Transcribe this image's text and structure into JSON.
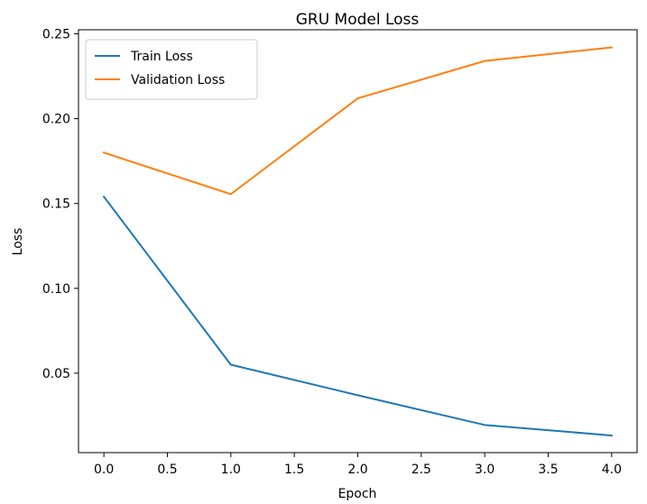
{
  "chart_data": {
    "type": "line",
    "title": "GRU Model Loss",
    "xlabel": "Epoch",
    "ylabel": "Loss",
    "x": [
      0,
      1,
      2,
      3,
      4
    ],
    "series": [
      {
        "name": "Train Loss",
        "color": "#1f77b4",
        "values": [
          0.154,
          0.055,
          0.037,
          0.0195,
          0.0133
        ]
      },
      {
        "name": "Validation Loss",
        "color": "#ff7f0e",
        "values": [
          0.18,
          0.1555,
          0.212,
          0.234,
          0.242
        ]
      }
    ],
    "xlim": [
      -0.2,
      4.2
    ],
    "ylim": [
      0.0032,
      0.2524
    ],
    "xticks": [
      0.0,
      0.5,
      1.0,
      1.5,
      2.0,
      2.5,
      3.0,
      3.5,
      4.0
    ],
    "xtick_labels": [
      "0.0",
      "0.5",
      "1.0",
      "1.5",
      "2.0",
      "2.5",
      "3.0",
      "3.5",
      "4.0"
    ],
    "yticks": [
      0.05,
      0.1,
      0.15,
      0.2,
      0.25
    ],
    "ytick_labels": [
      "0.05",
      "0.10",
      "0.15",
      "0.20",
      "0.25"
    ],
    "grid": false,
    "legend_position": "top-left"
  }
}
